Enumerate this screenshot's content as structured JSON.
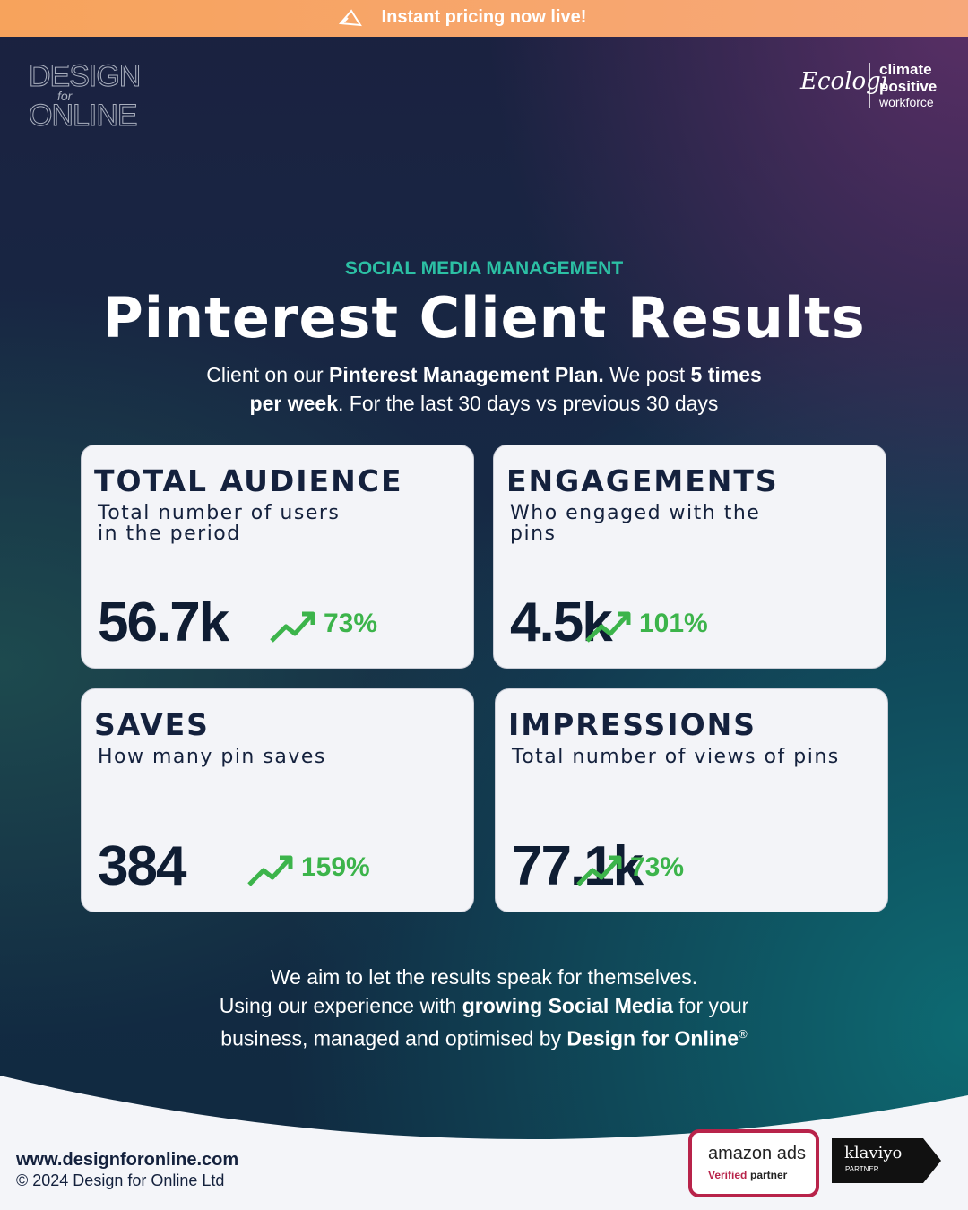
{
  "banner": {
    "text": "Instant pricing now live!"
  },
  "logo": {
    "lines": [
      "DESIGN",
      "for",
      "ONLINE"
    ]
  },
  "partner_logo": {
    "brand": "Ecologi",
    "lines": [
      "climate",
      "positive",
      "workforce"
    ]
  },
  "kicker": "SOCIAL MEDIA MANAGEMENT",
  "title": "Pinterest Client Results",
  "intro": [
    [
      {
        "text": "Client on our ",
        "bold": false
      },
      {
        "text": "Pinterest Management Plan.",
        "bold": true
      },
      {
        "text": "  We post ",
        "bold": false
      },
      {
        "text": "5 times",
        "bold": true
      }
    ],
    [
      {
        "text": "per week",
        "bold": true
      },
      {
        "text": ". For the last 30 days vs previous 30 days",
        "bold": false
      }
    ]
  ],
  "cards": [
    {
      "title": "TOTAL AUDIENCE",
      "subtitle": [
        "Total number of users",
        "in the period"
      ],
      "value": "56.7k",
      "change": "73%"
    },
    {
      "title": "ENGAGEMENTS",
      "subtitle": [
        "Who engaged with the",
        "pins"
      ],
      "value": "4.5k",
      "change": "101%"
    },
    {
      "title": "SAVES",
      "subtitle": [
        "How many pin saves"
      ],
      "value": "384",
      "change": "159%"
    },
    {
      "title": "IMPRESSIONS",
      "subtitle": [
        "Total number of views of pins"
      ],
      "value": "77.1k",
      "change": "73%"
    }
  ],
  "closing": [
    [
      {
        "text": "We aim to let the results speak for themselves.",
        "bold": false
      }
    ],
    [
      {
        "text": "Using our experience with ",
        "bold": false
      },
      {
        "text": "growing Social Media",
        "bold": true
      },
      {
        "text": " for your",
        "bold": false
      }
    ],
    [
      {
        "text": "business, managed and optimised by ",
        "bold": false
      },
      {
        "text": "Design for Online",
        "bold": true
      },
      {
        "text": "®",
        "bold": false,
        "sup": true
      }
    ]
  ],
  "footer": {
    "url": "www.designforonline.com",
    "copyright": "© 2024 Design for Online Ltd",
    "amazon": {
      "brand": "amazon ads",
      "verified": "Verified",
      "partner": "partner"
    },
    "klaviyo": {
      "brand": "klaviyo",
      "partner": "PARTNER"
    }
  }
}
